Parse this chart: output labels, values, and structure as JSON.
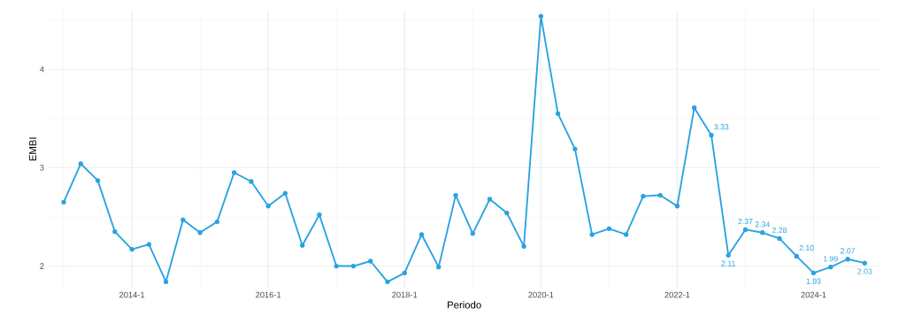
{
  "chart_data": {
    "type": "line",
    "xlabel": "Periodo",
    "ylabel": "EMBI",
    "categories": [
      null,
      null,
      null,
      null,
      "2014-1",
      null,
      null,
      null,
      null,
      null,
      null,
      null,
      "2016-1",
      null,
      null,
      null,
      null,
      null,
      null,
      null,
      "2018-1",
      null,
      null,
      null,
      null,
      null,
      null,
      null,
      "2020-1",
      null,
      null,
      null,
      null,
      null,
      null,
      null,
      "2022-1",
      null,
      null,
      null,
      null,
      null,
      null,
      null,
      "2024-1",
      null,
      null,
      null
    ],
    "series": [
      {
        "color": "#29a3e0",
        "values": [
          2.65,
          3.04,
          2.87,
          2.35,
          2.17,
          2.22,
          1.84,
          2.47,
          2.34,
          2.45,
          2.95,
          2.86,
          2.61,
          2.74,
          2.21,
          2.52,
          2.0,
          2.0,
          2.05,
          1.84,
          1.93,
          2.32,
          1.99,
          2.72,
          2.33,
          2.68,
          2.54,
          2.2,
          4.54,
          3.55,
          3.19,
          2.32,
          2.38,
          2.32,
          2.71,
          2.72,
          2.61,
          3.61,
          3.33,
          2.11,
          2.37,
          2.34,
          2.28,
          2.1,
          1.93,
          1.99,
          2.07,
          2.03
        ],
        "value_labels": [
          null,
          null,
          null,
          null,
          null,
          null,
          null,
          null,
          null,
          null,
          null,
          null,
          null,
          null,
          null,
          null,
          null,
          null,
          null,
          null,
          null,
          null,
          null,
          null,
          null,
          null,
          null,
          null,
          null,
          null,
          null,
          null,
          null,
          null,
          null,
          null,
          null,
          null,
          "3.33",
          "2.11",
          "2.37",
          "2.34",
          "2.28",
          "2.10",
          "1.93",
          "1.99",
          "2.07",
          "2.03"
        ]
      }
    ],
    "ylim": [
      1.78,
      4.6
    ],
    "yticks": [
      2,
      3,
      4
    ],
    "grid": true,
    "marker": "circle",
    "line_style": "solid"
  }
}
